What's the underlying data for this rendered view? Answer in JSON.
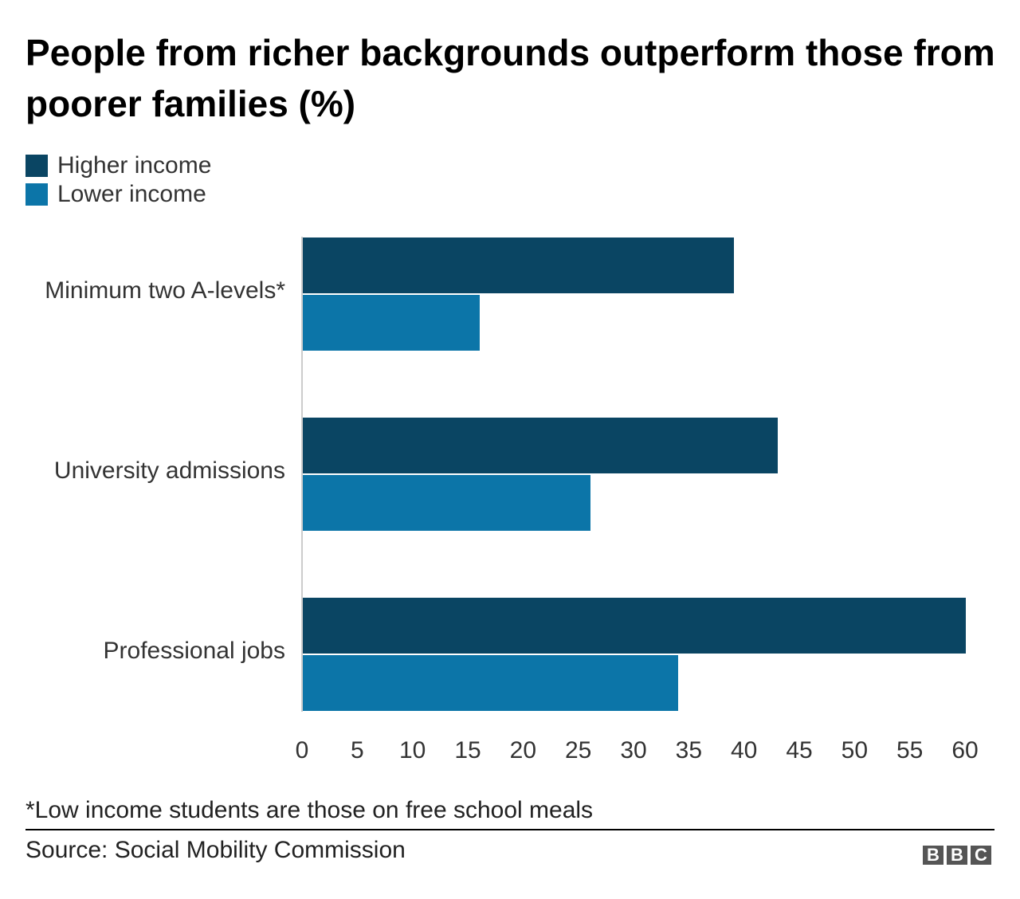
{
  "chart_data": {
    "type": "bar",
    "orientation": "horizontal",
    "title": "People from richer backgrounds outperform those from poorer families (%)",
    "categories": [
      "Minimum two A-levels*",
      "University admissions",
      "Professional jobs"
    ],
    "series": [
      {
        "name": "Higher income",
        "color": "#0a4563",
        "values": [
          39,
          43,
          60
        ]
      },
      {
        "name": "Lower income",
        "color": "#0c75a8",
        "values": [
          16,
          26,
          34
        ]
      }
    ],
    "xlabel": "",
    "ylabel": "",
    "xlim": [
      0,
      60
    ],
    "xticks": [
      0,
      5,
      10,
      15,
      20,
      25,
      30,
      35,
      40,
      45,
      50,
      55,
      60
    ],
    "grid": false,
    "legend_position": "top-left"
  },
  "title": "People from richer backgrounds outperform those from poorer families (%)",
  "legend": [
    {
      "label": "Higher income",
      "color": "#0a4563"
    },
    {
      "label": "Lower income",
      "color": "#0c75a8"
    }
  ],
  "ticks": [
    "0",
    "5",
    "10",
    "15",
    "20",
    "25",
    "30",
    "35",
    "40",
    "45",
    "50",
    "55",
    "60"
  ],
  "footnote": "*Low income students are those on free school meals",
  "source": "Source: Social Mobility Commission",
  "logo": [
    "B",
    "B",
    "C"
  ]
}
